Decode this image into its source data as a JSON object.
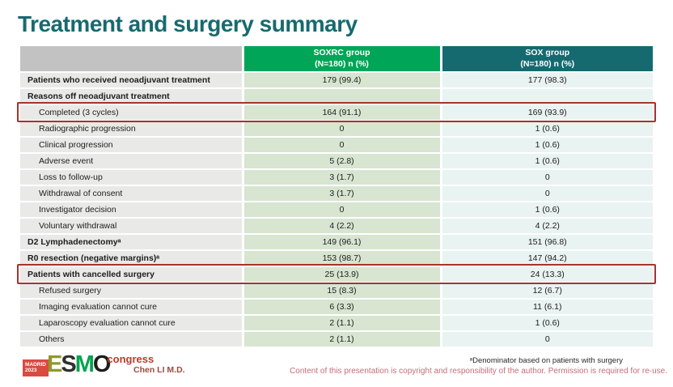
{
  "slide": {
    "title": "Treatment and surgery summary"
  },
  "colors": {
    "title_teal": "#176a6e",
    "header_green": "#00a557",
    "header_teal": "#156a70",
    "header_gray": "#c2c2c2",
    "label_bg": "#e9e9e7",
    "soxrc_bg": "#d7e5d1",
    "sox_bg": "#e9f3f1",
    "highlight_red": "#a5342c",
    "presenter_maroon": "#9c4a3c",
    "copyright_pink": "#c66d79",
    "madrid_red": "#d94a41",
    "congress_red": "#c0392b"
  },
  "table": {
    "header": {
      "col1": "",
      "col2_line1": "SOXRC group",
      "col2_line2": "(N=180)  n (%)",
      "col3_line1": "SOX group",
      "col3_line2": "(N=180)  n (%)"
    },
    "rows": [
      {
        "label": "Patients who received neoadjuvant treatment",
        "soxrc": "179 (99.4)",
        "sox": "177 (98.3)",
        "bold": true,
        "indent": false,
        "highlighted": false
      },
      {
        "label": "Reasons off neoadjuvant treatment",
        "soxrc": "",
        "sox": "",
        "bold": true,
        "indent": false,
        "highlighted": false
      },
      {
        "label": "Completed (3 cycles)",
        "soxrc": "164 (91.1)",
        "sox": "169 (93.9)",
        "bold": false,
        "indent": true,
        "highlighted": true
      },
      {
        "label": "Radiographic progression",
        "soxrc": "0",
        "sox": "1 (0.6)",
        "bold": false,
        "indent": true,
        "highlighted": false
      },
      {
        "label": "Clinical progression",
        "soxrc": "0",
        "sox": "1 (0.6)",
        "bold": false,
        "indent": true,
        "highlighted": false
      },
      {
        "label": "Adverse event",
        "soxrc": "5 (2.8)",
        "sox": "1 (0.6)",
        "bold": false,
        "indent": true,
        "highlighted": false
      },
      {
        "label": "Loss to follow-up",
        "soxrc": "3 (1.7)",
        "sox": "0",
        "bold": false,
        "indent": true,
        "highlighted": false
      },
      {
        "label": "Withdrawal of consent",
        "soxrc": "3 (1.7)",
        "sox": "0",
        "bold": false,
        "indent": true,
        "highlighted": false
      },
      {
        "label": "Investigator decision",
        "soxrc": "0",
        "sox": "1 (0.6)",
        "bold": false,
        "indent": true,
        "highlighted": false
      },
      {
        "label": "Voluntary withdrawal",
        "soxrc": "4 (2.2)",
        "sox": "4 (2.2)",
        "bold": false,
        "indent": true,
        "highlighted": false
      },
      {
        "label": "D2 Lymphadenectomyᵃ",
        "soxrc": "149 (96.1)",
        "sox": "151 (96.8)",
        "bold": true,
        "indent": false,
        "highlighted": false
      },
      {
        "label": "R0 resection (negative margins)ᵃ",
        "soxrc": "153 (98.7)",
        "sox": "147 (94.2)",
        "bold": true,
        "indent": false,
        "highlighted": false
      },
      {
        "label": "Patients with cancelled surgery",
        "soxrc": "25 (13.9)",
        "sox": "24 (13.3)",
        "bold": true,
        "indent": false,
        "highlighted": true
      },
      {
        "label": "Refused surgery",
        "soxrc": "15 (8.3)",
        "sox": "12 (6.7)",
        "bold": false,
        "indent": true,
        "highlighted": false
      },
      {
        "label": "Imaging evaluation cannot cure",
        "soxrc": "6 (3.3)",
        "sox": "11 (6.1)",
        "bold": false,
        "indent": true,
        "highlighted": false
      },
      {
        "label": "Laparoscopy evaluation cannot cure",
        "soxrc": "2 (1.1)",
        "sox": "1 (0.6)",
        "bold": false,
        "indent": true,
        "highlighted": false
      },
      {
        "label": "Others",
        "soxrc": "2 (1.1)",
        "sox": "0",
        "bold": false,
        "indent": true,
        "highlighted": false
      }
    ]
  },
  "footer": {
    "presenter": "Chen LI M.D.",
    "footnote": "ᵃDenominator based on patients with surgery",
    "copyright": "Content of this presentation is copyright and responsibility of the author. Permission is required for re-use.",
    "logo": {
      "madrid": "MADRID",
      "year": "2023",
      "congress": "congress",
      "letters": [
        {
          "ch": "E",
          "color": "#8f992b"
        },
        {
          "ch": "S",
          "color": "#2f2f2b"
        },
        {
          "ch": "M",
          "color": "#00a44f"
        },
        {
          "ch": "O",
          "color": "#1d1d1b"
        }
      ]
    }
  }
}
